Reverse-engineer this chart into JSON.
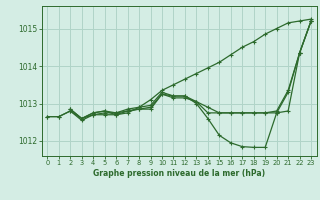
{
  "title": "Graphe pression niveau de la mer (hPa)",
  "bg_color": "#d4ede4",
  "grid_color": "#b0d4c8",
  "line_color": "#2d6a2d",
  "xlim": [
    -0.5,
    23.5
  ],
  "ylim": [
    1011.6,
    1015.6
  ],
  "yticks": [
    1012,
    1013,
    1014,
    1015
  ],
  "xticks": [
    0,
    1,
    2,
    3,
    4,
    5,
    6,
    7,
    8,
    9,
    10,
    11,
    12,
    13,
    14,
    15,
    16,
    17,
    18,
    19,
    20,
    21,
    22,
    23
  ],
  "series": [
    {
      "x": [
        0,
        1,
        2,
        3,
        4,
        5,
        6,
        7,
        8,
        9,
        10,
        11,
        12,
        13,
        14,
        15,
        16,
        17,
        18,
        19,
        20,
        21,
        22,
        23
      ],
      "y": [
        1012.65,
        1012.65,
        1012.8,
        1012.55,
        1012.7,
        1012.7,
        1012.7,
        1012.75,
        1012.9,
        1013.1,
        1013.35,
        1013.5,
        1013.65,
        1013.8,
        1013.95,
        1014.1,
        1014.3,
        1014.5,
        1014.65,
        1014.85,
        1015.0,
        1015.15,
        1015.2,
        1015.25
      ]
    },
    {
      "x": [
        0,
        1,
        2,
        3,
        4,
        5,
        6,
        7,
        8,
        9,
        10,
        11,
        12,
        13,
        14,
        15,
        16,
        17,
        18,
        19,
        20,
        21,
        22,
        23
      ],
      "y": [
        1012.65,
        1012.65,
        1012.8,
        1012.6,
        1012.7,
        1012.75,
        1012.75,
        1012.8,
        1012.85,
        1012.85,
        1013.25,
        1013.15,
        1013.15,
        1013.05,
        1012.9,
        1012.75,
        1012.75,
        1012.75,
        1012.75,
        1012.75,
        1012.75,
        1012.8,
        1014.35,
        1015.2
      ]
    },
    {
      "x": [
        2,
        3,
        4,
        5,
        6,
        7,
        8,
        9,
        10,
        11,
        12,
        13,
        14,
        15,
        16,
        17,
        18,
        19,
        20,
        21,
        22,
        23
      ],
      "y": [
        1012.85,
        1012.6,
        1012.75,
        1012.8,
        1012.75,
        1012.85,
        1012.9,
        1012.95,
        1013.3,
        1013.2,
        1013.2,
        1013.05,
        1012.75,
        1012.75,
        1012.75,
        1012.75,
        1012.75,
        1012.75,
        1012.8,
        1013.35,
        1014.35,
        1015.2
      ]
    },
    {
      "x": [
        2,
        3,
        4,
        5,
        6,
        7,
        8,
        9,
        10,
        11,
        12,
        13,
        14,
        15,
        16,
        17,
        18,
        19,
        20,
        21,
        22,
        23
      ],
      "y": [
        1012.85,
        1012.6,
        1012.75,
        1012.8,
        1012.7,
        1012.8,
        1012.85,
        1012.9,
        1013.25,
        1013.2,
        1013.2,
        1013.0,
        1012.6,
        1012.15,
        1011.95,
        1011.85,
        1011.83,
        1011.83,
        1012.75,
        1013.3,
        1014.35,
        1015.2
      ]
    }
  ]
}
